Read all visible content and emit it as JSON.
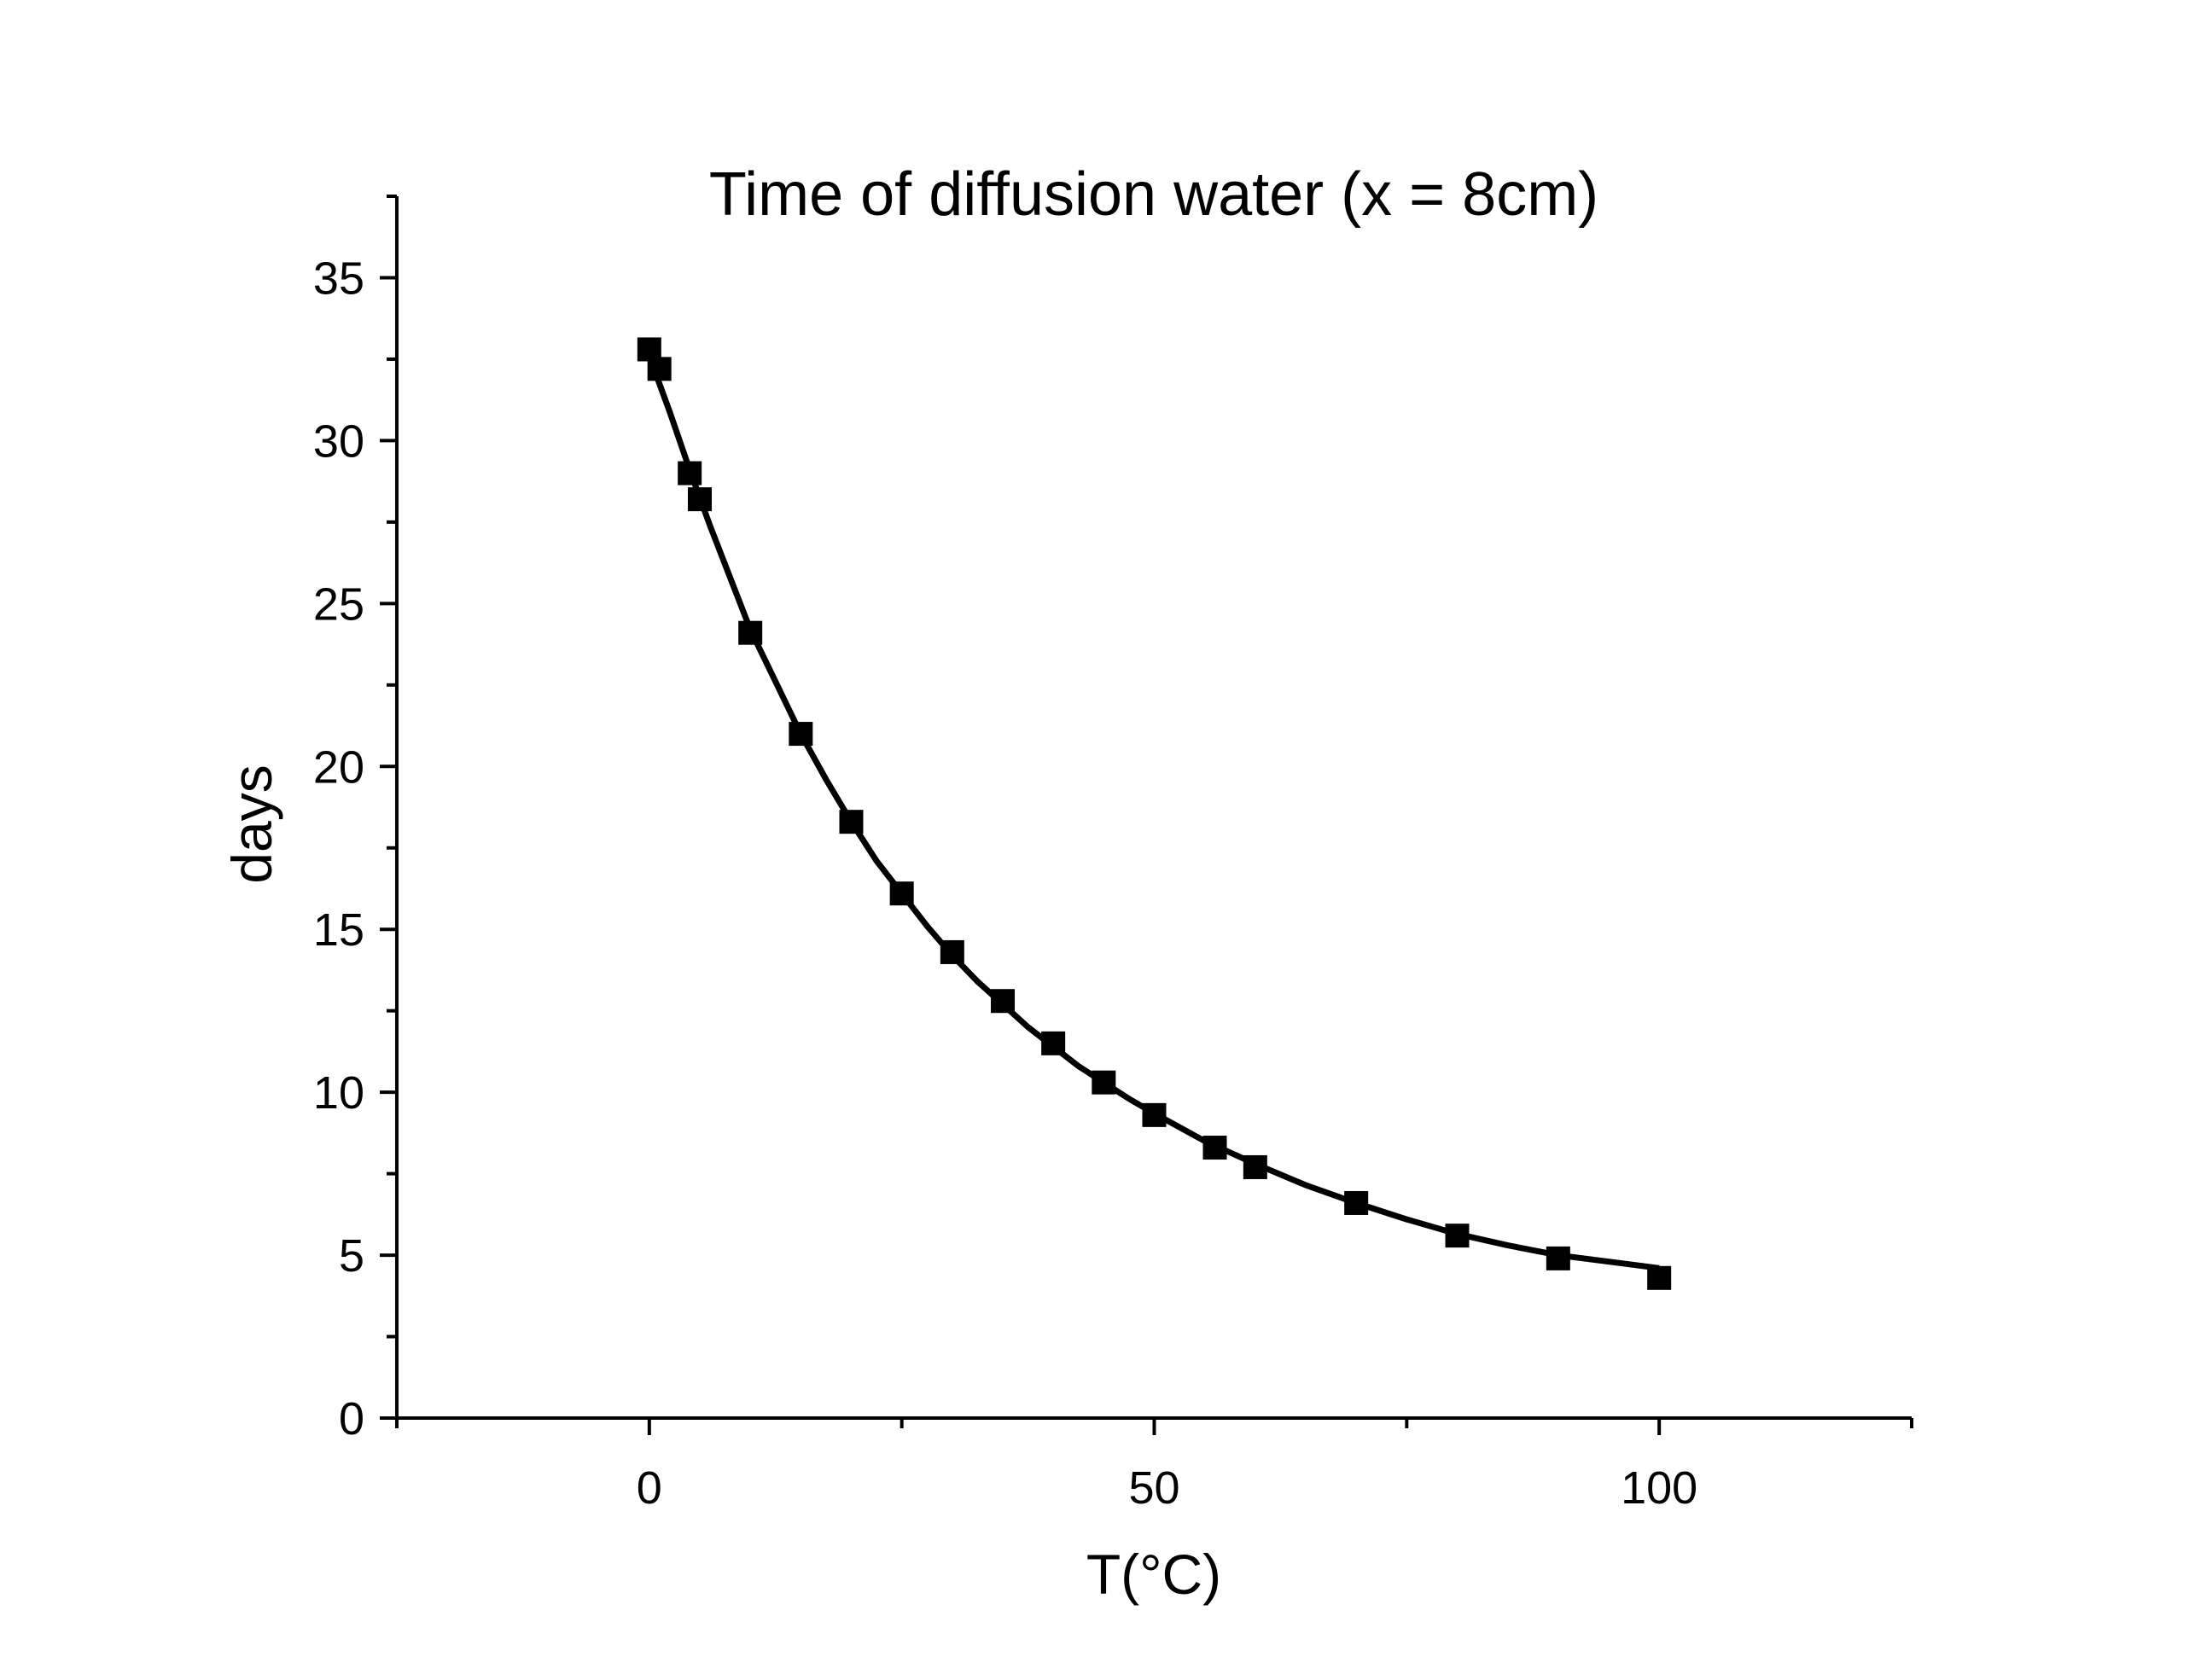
{
  "chart_data": {
    "type": "scatter",
    "title": "Time of diffusion water (x = 8cm)",
    "xlabel": "T(°C)",
    "ylabel": "days",
    "xlim": [
      -25,
      125
    ],
    "ylim": [
      0,
      37.5
    ],
    "x_ticks": [
      0,
      50,
      100
    ],
    "x_minor_ticks": [
      -25,
      25,
      75,
      125
    ],
    "y_ticks": [
      0,
      5,
      10,
      15,
      20,
      25,
      30,
      35
    ],
    "y_minor_ticks": [
      2.5,
      7.5,
      12.5,
      17.5,
      22.5,
      27.5,
      32.5,
      37.5
    ],
    "grid": false,
    "legend": "none",
    "colors": {
      "markers": "#000000",
      "fit_line": "#000000",
      "axes": "#000000"
    },
    "series": [
      {
        "marker": "square",
        "points": [
          {
            "x": 0,
            "y": 32.8
          },
          {
            "x": 1,
            "y": 32.2
          },
          {
            "x": 4,
            "y": 29.0
          },
          {
            "x": 5,
            "y": 28.2
          },
          {
            "x": 10,
            "y": 24.1
          },
          {
            "x": 15,
            "y": 21.0
          },
          {
            "x": 20,
            "y": 18.3
          },
          {
            "x": 25,
            "y": 16.1
          },
          {
            "x": 30,
            "y": 14.3
          },
          {
            "x": 35,
            "y": 12.8
          },
          {
            "x": 40,
            "y": 11.5
          },
          {
            "x": 45,
            "y": 10.3
          },
          {
            "x": 50,
            "y": 9.3
          },
          {
            "x": 56,
            "y": 8.3
          },
          {
            "x": 60,
            "y": 7.7
          },
          {
            "x": 70,
            "y": 6.6
          },
          {
            "x": 80,
            "y": 5.6
          },
          {
            "x": 90,
            "y": 4.9
          },
          {
            "x": 100,
            "y": 4.3
          }
        ]
      },
      {
        "style": "line",
        "points": [
          {
            "x": 0.7,
            "y": 32.0
          },
          {
            "x": 2,
            "y": 30.9
          },
          {
            "x": 4,
            "y": 29.1
          },
          {
            "x": 6,
            "y": 27.4
          },
          {
            "x": 8,
            "y": 25.8
          },
          {
            "x": 10,
            "y": 24.2
          },
          {
            "x": 12.5,
            "y": 22.6
          },
          {
            "x": 15,
            "y": 21.0
          },
          {
            "x": 17.5,
            "y": 19.6
          },
          {
            "x": 20,
            "y": 18.3
          },
          {
            "x": 22.5,
            "y": 17.1
          },
          {
            "x": 25,
            "y": 16.1
          },
          {
            "x": 27.5,
            "y": 15.1
          },
          {
            "x": 30,
            "y": 14.2
          },
          {
            "x": 32.5,
            "y": 13.4
          },
          {
            "x": 35,
            "y": 12.7
          },
          {
            "x": 37.5,
            "y": 12.0
          },
          {
            "x": 40,
            "y": 11.4
          },
          {
            "x": 42.5,
            "y": 10.8
          },
          {
            "x": 45,
            "y": 10.3
          },
          {
            "x": 47.5,
            "y": 9.8
          },
          {
            "x": 50,
            "y": 9.35
          },
          {
            "x": 55,
            "y": 8.5
          },
          {
            "x": 60,
            "y": 7.8
          },
          {
            "x": 65,
            "y": 7.15
          },
          {
            "x": 70,
            "y": 6.6
          },
          {
            "x": 75,
            "y": 6.1
          },
          {
            "x": 80,
            "y": 5.65
          },
          {
            "x": 85,
            "y": 5.3
          },
          {
            "x": 90,
            "y": 5.0
          },
          {
            "x": 95,
            "y": 4.8
          },
          {
            "x": 100,
            "y": 4.6
          }
        ]
      }
    ]
  }
}
